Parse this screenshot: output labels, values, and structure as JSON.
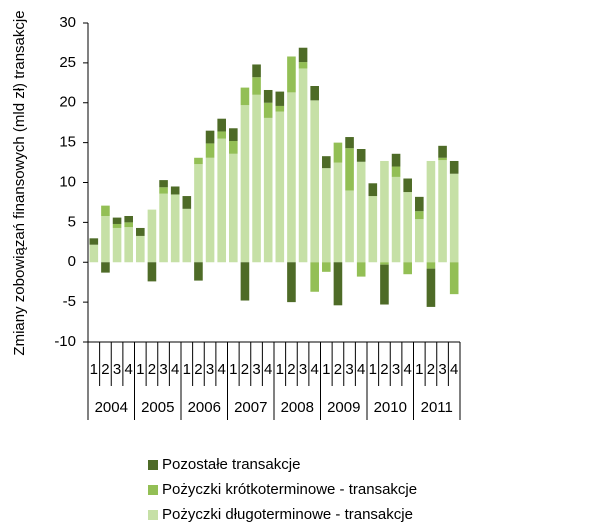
{
  "chart_data": {
    "type": "stacked-bar",
    "y_label": "Zmiany zobowiązań finansowych (mld zł) transakcje",
    "categories": [
      "1",
      "2",
      "3",
      "4",
      "1",
      "2",
      "3",
      "4",
      "1",
      "2",
      "3",
      "4",
      "1",
      "2",
      "3",
      "4",
      "1",
      "2",
      "3",
      "4",
      "1",
      "2",
      "3",
      "4",
      "1",
      "2",
      "3",
      "4",
      "1",
      "2",
      "3",
      "4"
    ],
    "years": [
      "2004",
      "2005",
      "2006",
      "2007",
      "2008",
      "2009",
      "2010",
      "2011"
    ],
    "series": [
      {
        "name": "Pozostałe transakcje",
        "color": "#4e6b27",
        "values": [
          0.8,
          -1.3,
          0.8,
          0.8,
          1,
          -2.4,
          0.9,
          1,
          1.6,
          -2.3,
          1.6,
          1.6,
          1.6,
          -4.8,
          1.6,
          1.6,
          1.8,
          -5,
          1.8,
          1.8,
          1.5,
          -5.4,
          1.4,
          1.6,
          1.6,
          -5,
          1.6,
          1.7,
          1.8,
          -4.8,
          1.5,
          1.6
        ]
      },
      {
        "name": "Pożyczki krótkoterminowe - transakcje",
        "color": "#93bf55",
        "values": [
          0,
          1.3,
          0.5,
          0.6,
          0,
          0,
          0.8,
          0,
          0,
          0.8,
          1.8,
          0.9,
          1.6,
          2.2,
          2.2,
          1.9,
          0.7,
          4.5,
          0.8,
          -3.7,
          -1.2,
          2.5,
          5.3,
          -1.8,
          0,
          -0.3,
          1.3,
          -1.5,
          1,
          -0.8,
          0.3,
          -4
        ]
      },
      {
        "name": "Pożyczki długoterminowe - transakcje",
        "color": "#c6e0a6",
        "values": [
          2.2,
          5.8,
          4.3,
          4.4,
          3.3,
          6.6,
          8.6,
          8.5,
          6.7,
          12.3,
          13.1,
          15.5,
          13.6,
          19.7,
          21,
          18.1,
          18.9,
          21.3,
          24.3,
          20.3,
          11.8,
          12.5,
          9,
          12.6,
          8.3,
          12.7,
          10.7,
          8.8,
          5.4,
          12.7,
          12.8,
          11.1
        ]
      }
    ],
    "ylim": [
      -10,
      30
    ],
    "yticks": [
      -10,
      -5,
      0,
      5,
      10,
      15,
      20,
      25,
      30
    ]
  }
}
